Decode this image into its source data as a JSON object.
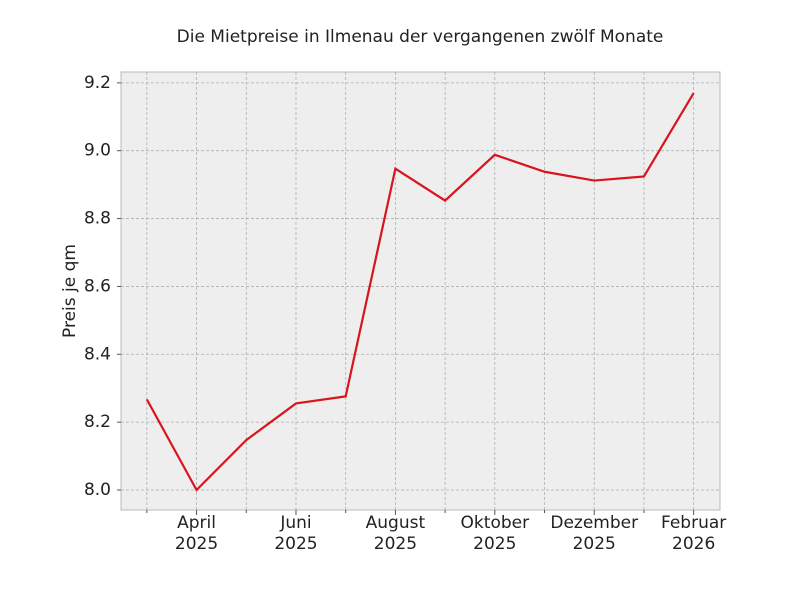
{
  "chart_data": {
    "type": "line",
    "title": "Die Mietpreise in Ilmenau der vergangenen zwölf Monate",
    "ylabel": "Preis je qm",
    "categories": [
      null,
      "April\n2025",
      null,
      "Juni\n2025",
      null,
      "August\n2025",
      null,
      "Oktober\n2025",
      null,
      "Dezember\n2025",
      null,
      "Februar\n2026"
    ],
    "values": [
      8.267,
      8.0,
      8.147,
      8.255,
      8.276,
      8.947,
      8.853,
      8.988,
      8.938,
      8.912,
      8.924,
      9.17
    ],
    "color": "#d9141c",
    "ylim": [
      7.941,
      9.232
    ],
    "yticks": [
      {
        "value": 8,
        "label": "8.0"
      },
      8.2,
      8.4,
      8.6,
      8.8,
      {
        "value": 9,
        "label": "9.0"
      },
      9.2
    ],
    "grid": true
  }
}
